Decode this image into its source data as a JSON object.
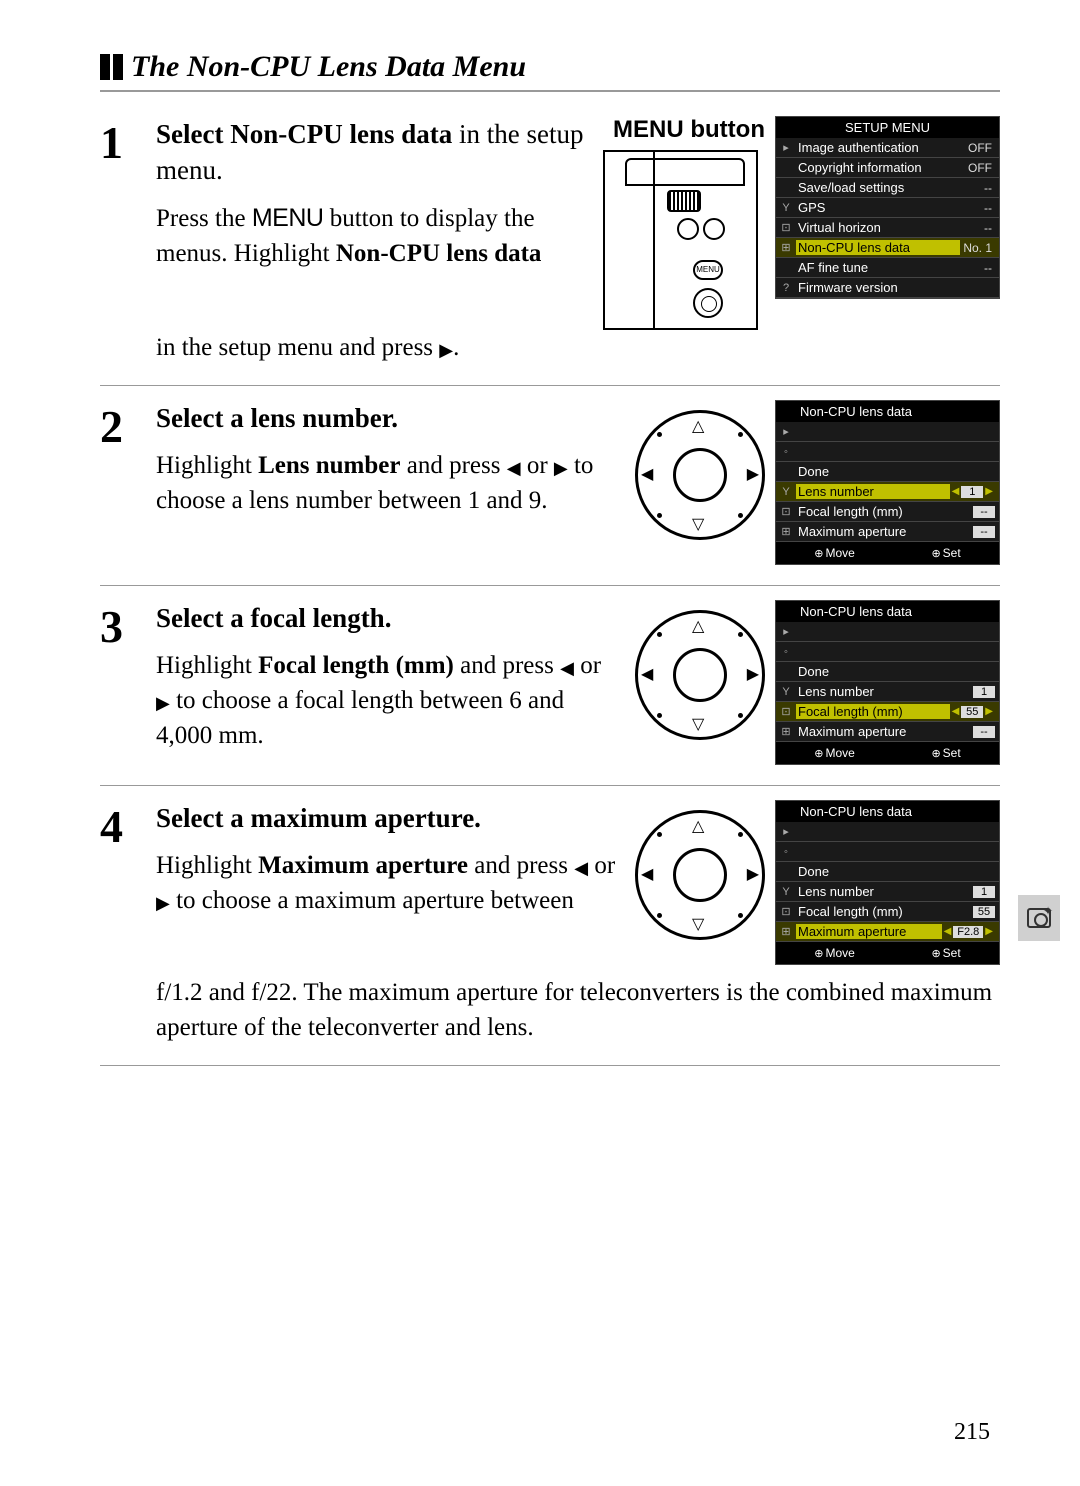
{
  "header": {
    "title": "The Non-CPU Lens Data Menu"
  },
  "steps": [
    {
      "num": "1",
      "title_bold1": "Select ",
      "title_bold2": "Non-CPU lens data",
      "title_normal": " in the setup menu.",
      "menu_button_label": "MENU button",
      "text_a": "Press the ",
      "text_menu": "MENU",
      "text_b": " button to display the menus. Highlight ",
      "text_bold": "Non-CPU lens data",
      "text_c": " in the setup menu and press ",
      "text_arrow": "▶",
      "text_d": "."
    },
    {
      "num": "2",
      "title": "Select a lens number.",
      "text_a": "Highlight ",
      "text_bold": "Lens number",
      "text_b": " and press ",
      "arr_l": "◀",
      "text_or": " or ",
      "arr_r": "▶",
      "text_c": " to choose a lens number between 1 and 9."
    },
    {
      "num": "3",
      "title": "Select a focal length.",
      "text_a": "Highlight ",
      "text_bold": "Focal length (mm)",
      "text_b": " and press ",
      "arr_l": "◀",
      "text_or": " or ",
      "arr_r": "▶",
      "text_c": " to choose a focal length between 6 and 4,000 mm."
    },
    {
      "num": "4",
      "title": "Select a maximum aperture.",
      "text_a": "Highlight ",
      "text_bold": "Maximum aperture",
      "text_b": " and press ",
      "arr_l": "◀",
      "text_or": " or ",
      "arr_r": "▶",
      "text_c": " to choose a maximum aperture between f/1.2 and f/22.  The maximum aperture for teleconverters is the combined maximum aperture of the teleconverter and lens."
    }
  ],
  "setup_menu": {
    "title": "SETUP MENU",
    "rows": [
      {
        "icon": "▸",
        "label": "Image authentication",
        "val": "OFF"
      },
      {
        "icon": "",
        "label": "Copyright information",
        "val": "OFF"
      },
      {
        "icon": "",
        "label": "Save/load settings",
        "val": "--"
      },
      {
        "icon": "Y",
        "label": "GPS",
        "val": "--"
      },
      {
        "icon": "⊡",
        "label": "Virtual horizon",
        "val": "--"
      },
      {
        "icon": "⊞",
        "label": "Non-CPU lens data",
        "val": "No. 1",
        "hl": true
      },
      {
        "icon": "",
        "label": "AF fine tune",
        "val": "--"
      },
      {
        "icon": "?",
        "label": "Firmware version",
        "val": ""
      }
    ]
  },
  "lens_menus": [
    {
      "title": "Non-CPU lens data",
      "rows": [
        {
          "label": "Done",
          "val": ""
        },
        {
          "label": "Lens number",
          "val": "1",
          "hl": true,
          "arrows": true
        },
        {
          "label": "Focal length (mm)",
          "val": "--"
        },
        {
          "label": "Maximum aperture",
          "val": "--"
        }
      ],
      "footer": {
        "move": "Move",
        "set": "Set"
      }
    },
    {
      "title": "Non-CPU lens data",
      "rows": [
        {
          "label": "Done",
          "val": ""
        },
        {
          "label": "Lens number",
          "val": "1"
        },
        {
          "label": "Focal length (mm)",
          "val": "55",
          "hl": true,
          "arrows": true
        },
        {
          "label": "Maximum aperture",
          "val": "--"
        }
      ],
      "footer": {
        "move": "Move",
        "set": "Set"
      }
    },
    {
      "title": "Non-CPU lens data",
      "rows": [
        {
          "label": "Done",
          "val": ""
        },
        {
          "label": "Lens number",
          "val": "1"
        },
        {
          "label": "Focal length (mm)",
          "val": "55"
        },
        {
          "label": "Maximum aperture",
          "val": "F2.8",
          "hl": true,
          "arrows": true
        }
      ],
      "footer": {
        "move": "Move",
        "set": "Set"
      }
    }
  ],
  "page_number": "215"
}
